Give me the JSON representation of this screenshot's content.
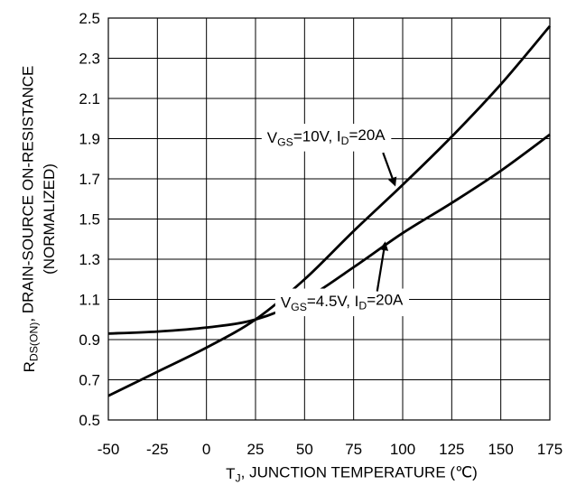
{
  "chart_data": {
    "type": "line",
    "title": "",
    "xlabel": {
      "parts": [
        {
          "text": "T",
          "sub": false
        },
        {
          "text": "J",
          "sub": true
        },
        {
          "text": ", JUNCTION TEMPERATURE (",
          "sub": false
        },
        {
          "text": "℃",
          "sub": false
        },
        {
          "text": ")",
          "sub": false
        }
      ]
    },
    "ylabel": {
      "line1_parts": [
        {
          "text": "R",
          "sub": false
        },
        {
          "text": "DS(ON)",
          "sub": true
        },
        {
          "text": ", DRAIN-SOURCE ON-RESISTANCE",
          "sub": false
        }
      ],
      "line2": "(NORMALIZED)"
    },
    "xlim": [
      -50,
      175
    ],
    "ylim": [
      0.5,
      2.5
    ],
    "xticks": [
      "-50",
      "-25",
      "0",
      "25",
      "50",
      "75",
      "100",
      "125",
      "150",
      "175"
    ],
    "yticks": [
      "2.5",
      "2.3",
      "2.1",
      "1.9",
      "1.7",
      "1.5",
      "1.3",
      "1.1",
      "0.9",
      "0.7",
      "0.5"
    ],
    "grid": true,
    "series": [
      {
        "name": "VGS=10V, ID=20A",
        "x": [
          -50,
          -25,
          0,
          25,
          50,
          75,
          100,
          125,
          150,
          175
        ],
        "y": [
          0.62,
          0.74,
          0.86,
          1.0,
          1.2,
          1.44,
          1.67,
          1.91,
          2.17,
          2.46
        ]
      },
      {
        "name": "VGS=4.5V, ID=20A",
        "x": [
          -50,
          -25,
          0,
          25,
          50,
          75,
          100,
          125,
          150,
          175
        ],
        "y": [
          0.93,
          0.94,
          0.96,
          1.0,
          1.1,
          1.26,
          1.43,
          1.58,
          1.74,
          1.92
        ]
      }
    ],
    "annotations": [
      {
        "series": 0,
        "parts": [
          {
            "text": "V",
            "sub": false
          },
          {
            "text": "GS",
            "sub": true
          },
          {
            "text": "=10V, I",
            "sub": false
          },
          {
            "text": "D",
            "sub": true
          },
          {
            "text": "=20A",
            "sub": false
          }
        ],
        "label_at": [
          61,
          1.88
        ],
        "arrow_from": [
          90,
          1.83
        ],
        "arrow_to": [
          96,
          1.67
        ]
      },
      {
        "series": 1,
        "parts": [
          {
            "text": "V",
            "sub": false
          },
          {
            "text": "GS",
            "sub": true
          },
          {
            "text": "=4.5V, I",
            "sub": false
          },
          {
            "text": "D",
            "sub": true
          },
          {
            "text": "=20A",
            "sub": false
          }
        ],
        "label_at": [
          69,
          1.06
        ],
        "arrow_from": [
          87,
          1.14
        ],
        "arrow_to": [
          91,
          1.38
        ]
      }
    ]
  }
}
